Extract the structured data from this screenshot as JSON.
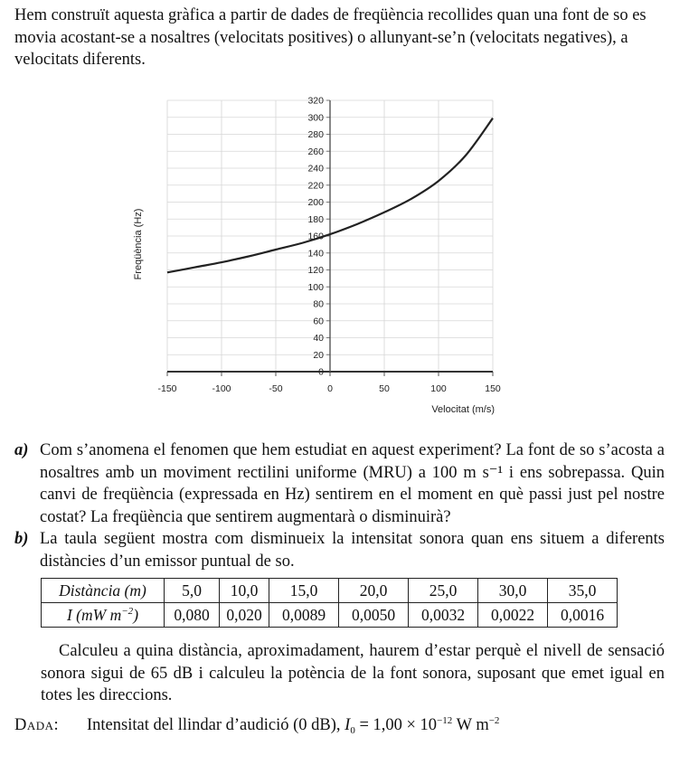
{
  "intro": "Hem construït aquesta gràfica a partir de dades de freqüència recollides quan una font de so es movia acostant-se a nosaltres (velocitats positives) o allunyant-se’n (velocitats negatives), a velocitats diferents.",
  "chart_data": {
    "type": "line",
    "title": "",
    "xlabel": "Velocitat (m/s)",
    "ylabel": "Freqüència (Hz)",
    "xlim": [
      -150,
      150
    ],
    "ylim": [
      0,
      320
    ],
    "x_ticks": [
      -150,
      -100,
      -50,
      0,
      50,
      100,
      150
    ],
    "y_ticks": [
      0,
      20,
      40,
      60,
      80,
      100,
      120,
      140,
      160,
      180,
      200,
      220,
      240,
      260,
      280,
      300,
      320
    ],
    "grid": true,
    "x": [
      -150,
      -125,
      -100,
      -75,
      -50,
      -25,
      0,
      25,
      50,
      75,
      100,
      125,
      150
    ],
    "y": [
      117,
      123,
      129,
      136,
      144,
      152,
      162,
      174,
      188,
      204,
      225,
      255,
      299
    ]
  },
  "question_a": {
    "label": "a)",
    "text": "Com s’anomena el fenomen que hem estudiat en aquest experiment? La font de so s’acosta a nosaltres amb un moviment rectilini uniforme (MRU) a 100 m s⁻¹ i ens sobrepassa. Quin canvi de freqüència (expressada en Hz) sentirem en el moment en què passi just pel nostre costat? La freqüència que sentirem augmentarà o disminuirà?"
  },
  "question_b": {
    "label": "b)",
    "text": "La taula següent mostra com disminueix la intensitat sonora quan ens situem a diferents distàncies d’un emissor puntual de so."
  },
  "table": {
    "row1_header": "Distància (m)",
    "row2_header_main": "I (mW m",
    "row2_header_sup": "−2",
    "row2_header_end": ")",
    "distances": [
      "5,0",
      "10,0",
      "15,0",
      "20,0",
      "25,0",
      "30,0",
      "35,0"
    ],
    "intensities": [
      "0,080",
      "0,020",
      "0,0089",
      "0,0050",
      "0,0032",
      "0,0022",
      "0,0016"
    ]
  },
  "calc": "Calculeu a quina distància, aproximadament, haurem d’estar perquè el nivell de sensació sonora sigui de 65 dB i calculeu la potència de la font sonora, suposant que emet igual en totes les direccions.",
  "dada": {
    "label": "Dada:",
    "text": "Intensitat del llindar d’audició (0 dB), ",
    "symbol": "I",
    "subscript": "0",
    "value": " = 1,00 × 10",
    "exponent": "−12",
    "unit": " W m",
    "unit_exponent": "−2"
  }
}
